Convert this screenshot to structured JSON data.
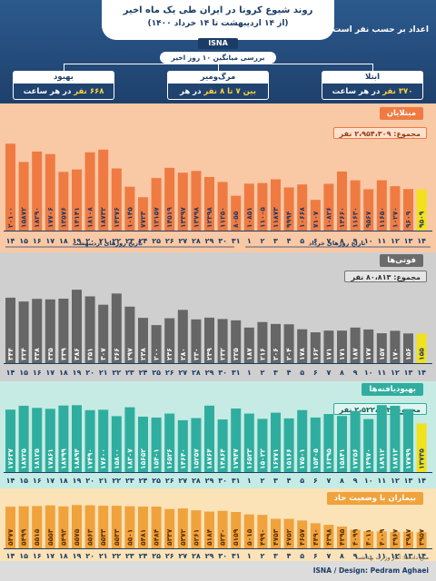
{
  "header": {
    "title": "روند شیوع کرونا در ایران طی یک ماه اخیر",
    "subtitle": "(از ۱۴ اردیبهشت تا ۱۴ خرداد ۱۴۰۰)",
    "brand": "ISNA",
    "unit_note": "اعداد بر حسب نفر است",
    "avg_label": "بررسی میانگین ۱۰ روز اخیر",
    "stats": [
      {
        "label": "بهبود",
        "value_num": "۶۶۸ نفر",
        "value_rest": " در هر ساعت"
      },
      {
        "label": "مرگ‌ومیر",
        "value_num": "بین ۷ تا ۸ نفر",
        "value_rest": " در هر ساعت"
      },
      {
        "label": "ابتلا",
        "value_num": "۳۷۰ نفر",
        "value_rest": " در هر ساعت"
      }
    ]
  },
  "sections": {
    "cases": {
      "title": "مبتلایان",
      "total": "مجموع: ۲،۹۵۴،۳۰۹ نفر",
      "axis_left": "تاریخ روزهای اردیبهشت",
      "axis_right": "تاریخ روزهای خرداد"
    },
    "deaths": {
      "title": "فوتی‌ها",
      "total": "مجموع: ۸۰،۸۱۳ نفر"
    },
    "recovered": {
      "title": "بهبودیافته‌ها",
      "total": "مجموع: ۲،۵۲۲،۷۰۲ نفر"
    },
    "critical": {
      "title": "بیماران با وضعیت حاد"
    }
  },
  "footer": {
    "credit": "ISNA / Design: Pedram Aghaei",
    "source": "منبع داده‌ها: آمار وزارت بهداشت"
  },
  "colors": {
    "cases": "#ef7b43",
    "deaths": "#666666",
    "recovered": "#2fae9f",
    "critical": "#f0a23c",
    "highlight": "#f2e11b",
    "header_bg": "#1d3e69"
  },
  "chart_data": [
    {
      "type": "bar",
      "title": "مبتلایان",
      "categories": [
        "14",
        "15",
        "16",
        "17",
        "18",
        "19",
        "20",
        "21",
        "22",
        "23",
        "24",
        "25",
        "26",
        "27",
        "28",
        "29",
        "30",
        "31",
        "1",
        "2",
        "3",
        "4",
        "5",
        "6",
        "7",
        "8",
        "9",
        "10",
        "11",
        "12",
        "13",
        "14"
      ],
      "values": [
        20100,
        15872,
        18290,
        17706,
        13576,
        14141,
        18108,
        18732,
        14376,
        10145,
        7723,
        12157,
        14519,
        13397,
        13798,
        12398,
        11250,
        8055,
        10851,
        11005,
        11873,
        9994,
        10668,
        7107,
        10826,
        13660,
        11630,
        9567,
        11650,
        10270,
        9609,
        9509
      ],
      "labels": [
        "۲۰۱۰۰",
        "۱۵۸۷۲",
        "۱۸۲۹۰",
        "۱۷۷۰۶",
        "۱۳۵۷۶",
        "۱۴۱۴۱",
        "۱۸۱۰۸",
        "۱۸۷۳۲",
        "۱۴۳۷۶",
        "۱۰۱۴۵",
        "۷۷۲۳",
        "۱۲۱۵۷",
        "۱۴۵۱۹",
        "۱۳۳۹۷",
        "۱۳۷۹۸",
        "۱۲۳۹۸",
        "۱۱۲۵۰",
        "۸۰۵۵",
        "۱۰۸۵۱",
        "۱۱۰۰۵",
        "۱۱۸۷۳",
        "۹۹۹۴",
        "۱۰۶۶۸",
        "۷۱۰۷",
        "۱۰۸۲۶",
        "۱۳۶۶۰",
        "۱۱۶۳۰",
        "۹۵۶۷",
        "۱۱۶۵۰",
        "۱۰۲۷۰",
        "۹۶۰۹",
        "۹۵۰۹"
      ],
      "ylim": [
        0,
        21000
      ]
    },
    {
      "type": "bar",
      "title": "فوتی‌ها",
      "categories": [
        "14",
        "15",
        "16",
        "17",
        "18",
        "19",
        "20",
        "21",
        "22",
        "23",
        "24",
        "25",
        "26",
        "27",
        "28",
        "29",
        "30",
        "31",
        "1",
        "2",
        "3",
        "4",
        "5",
        "6",
        "7",
        "8",
        "9",
        "10",
        "11",
        "12",
        "13",
        "14"
      ],
      "values": [
        344,
        324,
        338,
        335,
        339,
        386,
        351,
        307,
        366,
        297,
        238,
        200,
        236,
        280,
        230,
        239,
        232,
        225,
        187,
        216,
        206,
        204,
        178,
        162,
        171,
        171,
        187,
        177,
        157,
        170,
        156,
        155
      ],
      "labels": [
        "۳۴۴",
        "۳۲۴",
        "۳۳۸",
        "۳۳۵",
        "۳۳۹",
        "۳۸۶",
        "۳۵۱",
        "۳۰۷",
        "۳۶۶",
        "۲۹۷",
        "۲۳۸",
        "۲۰۰",
        "۲۳۶",
        "۲۸۰",
        "۲۳۰",
        "۲۳۹",
        "۲۳۲",
        "۲۲۵",
        "۱۸۷",
        "۲۱۶",
        "۲۰۶",
        "۲۰۴",
        "۱۷۸",
        "۱۶۲",
        "۱۷۱",
        "۱۷۱",
        "۱۸۷",
        "۱۷۷",
        "۱۵۷",
        "۱۷۰",
        "۱۵۶",
        "۱۵۵"
      ],
      "ylim": [
        0,
        420
      ]
    },
    {
      "type": "bar",
      "title": "بهبودیافته‌ها",
      "categories": [
        "14",
        "15",
        "16",
        "17",
        "18",
        "19",
        "20",
        "21",
        "22",
        "23",
        "24",
        "25",
        "26",
        "27",
        "28",
        "29",
        "30",
        "31",
        "1",
        "2",
        "3",
        "4",
        "5",
        "6",
        "7",
        "8",
        "9",
        "10",
        "11",
        "12",
        "13",
        "14"
      ],
      "values": [
        17637,
        18725,
        18125,
        17861,
        18799,
        18894,
        17490,
        17600,
        15800,
        18307,
        15652,
        15401,
        16526,
        14640,
        15257,
        18764,
        14864,
        17947,
        16523,
        15022,
        16771,
        15166,
        17501,
        15405,
        16395,
        15841,
        17256,
        14970,
        18912,
        18713,
        17799,
        13735
      ],
      "labels": [
        "۱۷۶۳۷",
        "۱۸۷۲۵",
        "۱۸۱۲۵",
        "۱۷۸۶۱",
        "۱۸۷۹۹",
        "۱۸۸۹۴",
        "۱۷۴۹۰",
        "۱۷۶۰۰",
        "۱۵۸۰۰",
        "۱۸۳۰۷",
        "۱۵۶۵۲",
        "۱۵۴۰۱",
        "۱۶۵۲۶",
        "۱۴۶۴۰",
        "۱۵۲۵۷",
        "۱۸۷۶۴",
        "۱۴۸۶۴",
        "۱۷۹۴۷",
        "۱۶۵۲۳",
        "۱۵۰۲۲",
        "۱۶۷۷۱",
        "۱۵۱۶۶",
        "۱۷۵۰۱",
        "۱۵۴۰۵",
        "۱۶۳۹۵",
        "۱۵۸۴۱",
        "۱۷۲۵۶",
        "۱۴۹۷۰",
        "۱۸۹۱۲",
        "۱۸۷۱۳",
        "۱۷۷۹۹",
        "۱۳۷۳۵"
      ],
      "ylim": [
        0,
        20000
      ]
    },
    {
      "type": "bar",
      "title": "بیماران با وضعیت حاد",
      "categories": [
        "14",
        "15",
        "16",
        "17",
        "18",
        "19",
        "20",
        "21",
        "22",
        "23",
        "24",
        "25",
        "26",
        "27",
        "28",
        "29",
        "30",
        "31",
        "1",
        "2",
        "3",
        "4",
        "5",
        "6",
        "7",
        "8",
        "9",
        "10",
        "11",
        "12",
        "13",
        "14"
      ],
      "values": [
        5477,
        5499,
        5515,
        5553,
        5493,
        5575,
        5563,
        5533,
        5533,
        5501,
        5481,
        5484,
        5337,
        5372,
        5261,
        5184,
        5230,
        5159,
        5015,
        4990,
        4753,
        4752,
        4657,
        4490,
        4398,
        4295,
        4099,
        4011,
        4009,
        3967,
        3987,
        3957
      ],
      "labels": [
        "۵۴۷۷",
        "۵۴۹۹",
        "۵۵۱۵",
        "۵۵۵۳",
        "۵۴۹۳",
        "۵۵۷۵",
        "۵۵۶۳",
        "۵۵۳۳",
        "۵۵۳۳",
        "۵۵۰۱",
        "۵۴۸۱",
        "۵۴۸۴",
        "۵۳۳۷",
        "۵۳۷۲",
        "۵۲۶۱",
        "۵۱۸۴",
        "۵۲۳۰",
        "۵۱۵۹",
        "۵۰۱۵",
        "۴۹۹۰",
        "۴۷۵۳",
        "۴۷۵۲",
        "۴۶۵۷",
        "۴۴۹۰",
        "۴۳۹۸",
        "۴۲۹۵",
        "۴۰۹۹",
        "۴۰۱۱",
        "۴۰۰۹",
        "۳۹۶۷",
        "۳۹۸۷",
        "۳۹۵۷"
      ],
      "ylim": [
        3000,
        5700
      ]
    }
  ]
}
